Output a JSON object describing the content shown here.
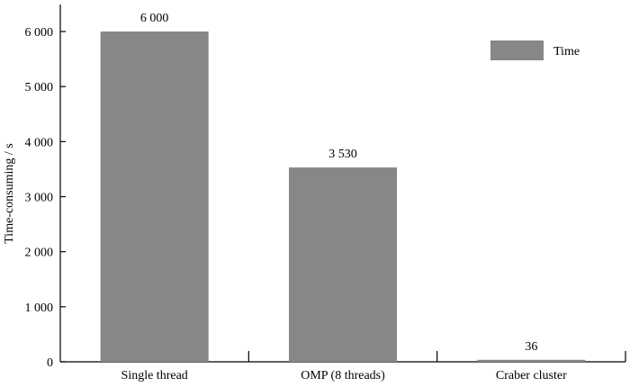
{
  "chart_data": {
    "type": "bar",
    "categories": [
      "Single thread",
      "OMP (8 threads)",
      "Craber cluster"
    ],
    "series": [
      {
        "name": "Time",
        "values": [
          6000,
          3530,
          36
        ]
      }
    ],
    "data_labels": [
      "6 000",
      "3 530",
      "36"
    ],
    "title": "",
    "xlabel": "",
    "ylabel": "Time-consuming / s",
    "ylim": [
      0,
      6500
    ],
    "yticks": [
      0,
      1000,
      2000,
      3000,
      4000,
      5000,
      6000
    ],
    "ytick_labels": [
      "0",
      "1 000",
      "2 000",
      "3 000",
      "4 000",
      "5 000",
      "6 000"
    ],
    "grid": false,
    "legend_position": "top-right",
    "bar_color": "#878787"
  }
}
